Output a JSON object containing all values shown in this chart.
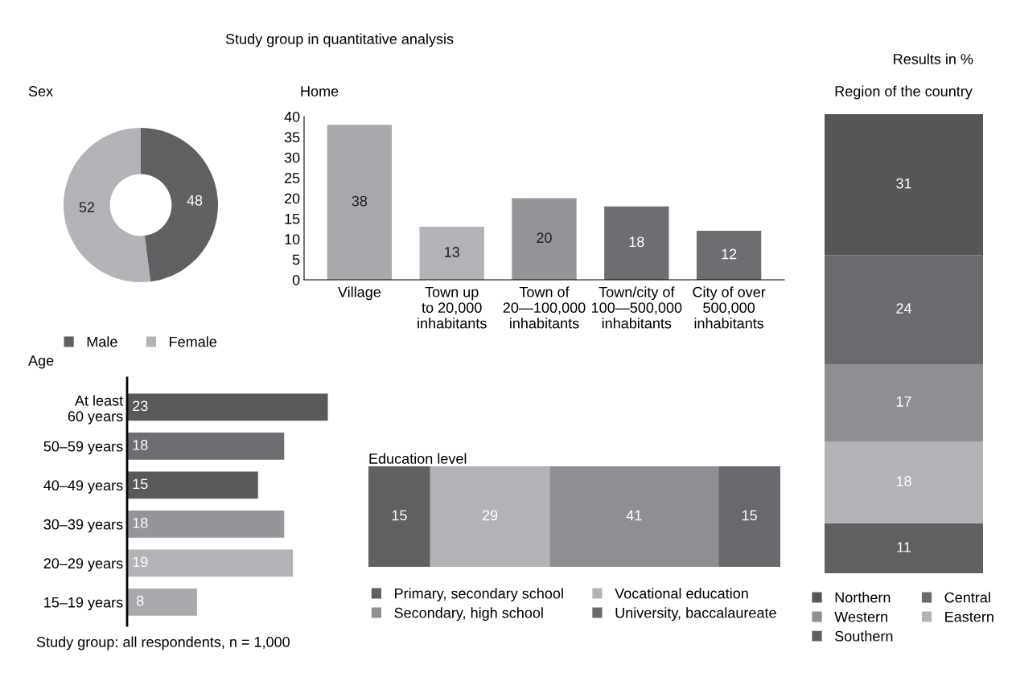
{
  "chart_data": [
    {
      "type": "other",
      "title": "Study group in quantitative analysis",
      "annotations": [
        "Results in %",
        "Study group: all respondents, n = 1,000"
      ]
    },
    {
      "type": "donut",
      "title": "Sex",
      "categories": [
        "Male",
        "Female"
      ],
      "values": [
        48,
        52
      ],
      "colors": [
        "#5f6062",
        "#b1b3b6"
      ],
      "data_labels": true,
      "legend": "bottom"
    },
    {
      "type": "bar",
      "title": "Home",
      "categories": [
        "Village",
        "Town up\nto 20,000\ninhabitants",
        "Town of\n20—100,000\ninhabitants",
        "Town/city of\n100—500,000\ninhabitants",
        "City of over\n500,000\ninhabitants"
      ],
      "values": [
        38,
        13,
        20,
        18,
        12
      ],
      "colors": [
        "#a7a9ac",
        "#b1b3b6",
        "#939598",
        "#6d6e71",
        "#6d6e71"
      ],
      "ylim": [
        0,
        40
      ],
      "yticks": [
        0,
        5,
        10,
        15,
        20,
        25,
        30,
        35,
        40
      ],
      "data_labels": true
    },
    {
      "type": "bar",
      "title": "Region of the country",
      "stacked": true,
      "categories": [
        null
      ],
      "legend": "bottom",
      "data_labels": true,
      "series": [
        {
          "name": "Southern",
          "color": "#5f6062",
          "values": [
            11
          ]
        },
        {
          "name": "Eastern",
          "color": "#b1b3b6",
          "values": [
            18
          ]
        },
        {
          "name": "Western",
          "color": "#8e8f92",
          "values": [
            17
          ]
        },
        {
          "name": "Central",
          "color": "#6a6b6e",
          "values": [
            24
          ]
        },
        {
          "name": "Northern",
          "color": "#555658",
          "values": [
            31
          ]
        }
      ]
    },
    {
      "type": "bar",
      "title": "Age",
      "orientation": "horizontal",
      "categories": [
        "At least\n60 years",
        "50–59 years",
        "40–49 years",
        "30–39 years",
        "20–29 years",
        "15–19 years"
      ],
      "values": [
        23,
        18,
        15,
        18,
        19,
        8
      ],
      "colors": [
        "#58595b",
        "#6d6e71",
        "#58595b",
        "#939598",
        "#b1b3b6",
        "#a7a9ac"
      ],
      "data_labels": true
    },
    {
      "type": "bar",
      "title": "Education level",
      "orientation": "horizontal",
      "stacked": true,
      "categories": [
        null
      ],
      "legend": "bottom",
      "data_labels": true,
      "series": [
        {
          "name": "Primary, secondary school",
          "color": "#5f6062",
          "values": [
            15
          ]
        },
        {
          "name": "Vocational education",
          "color": "#b1b3b6",
          "values": [
            29
          ]
        },
        {
          "name": "Secondary, high school",
          "color": "#8e8f92",
          "values": [
            41
          ]
        },
        {
          "name": "University, baccalaureate",
          "color": "#68696c",
          "values": [
            15
          ]
        }
      ]
    }
  ]
}
